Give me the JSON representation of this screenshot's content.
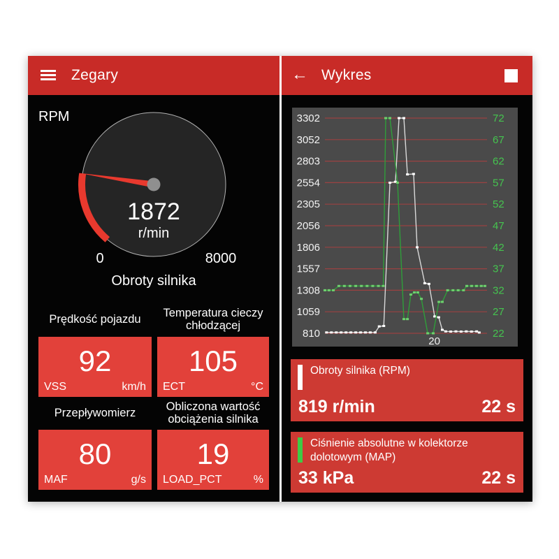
{
  "left": {
    "header": {
      "title": "Zegary"
    },
    "gauge": {
      "label": "RPM",
      "value": "1872",
      "unit": "r/min",
      "min_label": "0",
      "max_label": "8000",
      "caption": "Obroty silnika",
      "arc_color": "#e8392e"
    },
    "tiles": [
      {
        "title": "Prędkość pojazdu",
        "value": "92",
        "code": "VSS",
        "unit": "km/h"
      },
      {
        "title": "Temperatura cieczy chłodzącej",
        "value": "105",
        "code": "ECT",
        "unit": "°C"
      },
      {
        "title": "Przepływomierz",
        "value": "80",
        "code": "MAF",
        "unit": "g/s"
      },
      {
        "title": "Obliczona wartość obciążenia silnika",
        "value": "19",
        "code": "LOAD_PCT",
        "unit": "%"
      }
    ]
  },
  "right": {
    "header": {
      "title": "Wykres",
      "back_icon": "←"
    },
    "cards": [
      {
        "label": "Obroty silnika (RPM)",
        "value": "819 r/min",
        "time": "22 s",
        "bar_color": "#ffffff"
      },
      {
        "label": "Ciśnienie absolutne w kolektorze dolotowym (MAP)",
        "value": "33 kPa",
        "time": "22 s",
        "bar_color": "#3ecb45"
      }
    ]
  },
  "chart_data": {
    "type": "line",
    "background": "#4a4a4a",
    "gridline_color": "#9b4141",
    "grid": true,
    "left_axis": {
      "color": "#f2f2f2",
      "ticks": [
        3302,
        3052,
        2803,
        2554,
        2305,
        2056,
        1806,
        1557,
        1308,
        1059,
        810
      ],
      "range": [
        810,
        3302
      ]
    },
    "right_axis": {
      "color": "#45c44f",
      "ticks": [
        72,
        67,
        62,
        57,
        52,
        47,
        42,
        37,
        32,
        27,
        22
      ],
      "range": [
        22,
        72
      ]
    },
    "x_ticks": [
      {
        "label": "20",
        "frac": 0.675
      }
    ],
    "series": [
      {
        "name": "Obroty silnika (RPM)",
        "axis": "left",
        "color": "#d9d9d9",
        "marker_color": "#ffffff",
        "points": [
          [
            0.01,
            820
          ],
          [
            0.04,
            820
          ],
          [
            0.07,
            820
          ],
          [
            0.1,
            820
          ],
          [
            0.13,
            820
          ],
          [
            0.16,
            820
          ],
          [
            0.19,
            820
          ],
          [
            0.22,
            820
          ],
          [
            0.25,
            820
          ],
          [
            0.28,
            820
          ],
          [
            0.31,
            820
          ],
          [
            0.335,
            890
          ],
          [
            0.363,
            895
          ],
          [
            0.401,
            2554
          ],
          [
            0.435,
            2564
          ],
          [
            0.457,
            3302
          ],
          [
            0.487,
            3302
          ],
          [
            0.509,
            2650
          ],
          [
            0.547,
            2655
          ],
          [
            0.569,
            1806
          ],
          [
            0.616,
            1390
          ],
          [
            0.642,
            1382
          ],
          [
            0.677,
            1005
          ],
          [
            0.702,
            995
          ],
          [
            0.724,
            850
          ],
          [
            0.745,
            832
          ],
          [
            0.776,
            830
          ],
          [
            0.808,
            832
          ],
          [
            0.84,
            830
          ],
          [
            0.872,
            832
          ],
          [
            0.904,
            830
          ],
          [
            0.936,
            832
          ],
          [
            0.952,
            819
          ]
        ]
      },
      {
        "name": "Ciśnienie absolutne w kolektorze dolotowym (MAP)",
        "axis": "right",
        "color": "#2f9e3a",
        "marker_color": "#6fd06f",
        "points": [
          [
            0.0,
            32
          ],
          [
            0.025,
            32
          ],
          [
            0.052,
            32
          ],
          [
            0.086,
            33
          ],
          [
            0.12,
            33
          ],
          [
            0.155,
            33
          ],
          [
            0.19,
            33
          ],
          [
            0.225,
            33
          ],
          [
            0.26,
            33
          ],
          [
            0.295,
            33
          ],
          [
            0.33,
            33
          ],
          [
            0.36,
            33
          ],
          [
            0.375,
            72
          ],
          [
            0.401,
            72
          ],
          [
            0.448,
            57
          ],
          [
            0.487,
            25.3
          ],
          [
            0.509,
            25.3
          ],
          [
            0.53,
            31
          ],
          [
            0.552,
            31.5
          ],
          [
            0.573,
            31.5
          ],
          [
            0.595,
            30
          ],
          [
            0.634,
            22
          ],
          [
            0.668,
            22
          ],
          [
            0.703,
            29.3
          ],
          [
            0.724,
            29.3
          ],
          [
            0.757,
            32
          ],
          [
            0.79,
            32
          ],
          [
            0.822,
            32
          ],
          [
            0.855,
            32
          ],
          [
            0.875,
            33
          ],
          [
            0.905,
            33
          ],
          [
            0.935,
            33
          ],
          [
            0.965,
            33
          ],
          [
            0.987,
            33
          ]
        ]
      }
    ]
  }
}
